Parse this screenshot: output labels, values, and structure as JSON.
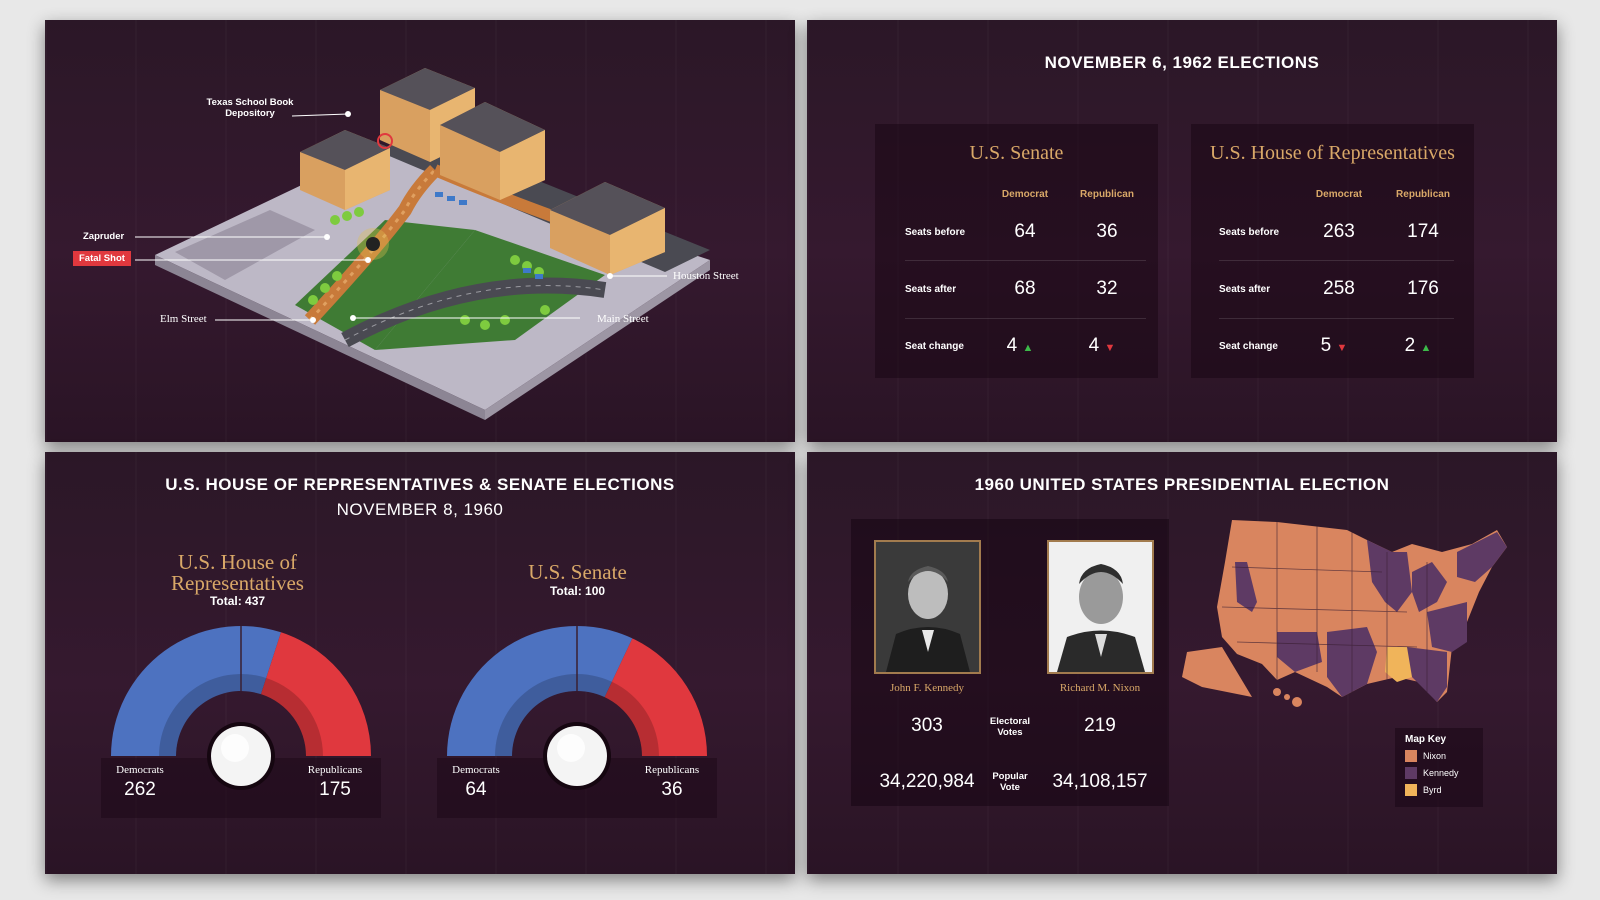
{
  "panel_assassination": {
    "labels": {
      "depository": "Texas School Book Depository",
      "zapruder": "Zapruder",
      "fatal_shot": "Fatal Shot",
      "elm_street": "Elm Street",
      "houston_street": "Houston Street",
      "main_street": "Main Street"
    }
  },
  "panel_1962": {
    "title": "NOVEMBER 6, 1962 ELECTIONS",
    "senate": {
      "heading": "U.S. Senate",
      "col_dem": "Democrat",
      "col_rep": "Republican",
      "rows": [
        {
          "label": "Seats before",
          "dem": "64",
          "rep": "36"
        },
        {
          "label": "Seats after",
          "dem": "68",
          "rep": "32"
        },
        {
          "label": "Seat change",
          "dem": "4",
          "rep": "4",
          "dem_dir": "up",
          "rep_dir": "down"
        }
      ]
    },
    "house": {
      "heading": "U.S. House of Representatives",
      "col_dem": "Democrat",
      "col_rep": "Republican",
      "rows": [
        {
          "label": "Seats before",
          "dem": "263",
          "rep": "174"
        },
        {
          "label": "Seats after",
          "dem": "258",
          "rep": "176"
        },
        {
          "label": "Seat change",
          "dem": "5",
          "rep": "2",
          "dem_dir": "down",
          "rep_dir": "up"
        }
      ]
    }
  },
  "panel_1960_congress": {
    "title": "U.S. HOUSE OF REPRESENTATIVES & SENATE ELECTIONS",
    "subtitle": "NOVEMBER 8, 1960",
    "house": {
      "heading_line1": "U.S. House of",
      "heading_line2": "Representatives",
      "total": "Total: 437",
      "dem_label": "Democrats",
      "dem_value": "262",
      "rep_label": "Republicans",
      "rep_value": "175"
    },
    "senate": {
      "heading": "U.S. Senate",
      "total": "Total: 100",
      "dem_label": "Democrats",
      "dem_value": "64",
      "rep_label": "Republicans",
      "rep_value": "36"
    }
  },
  "panel_1960_presidential": {
    "title": "1960 UNITED STATES PRESIDENTIAL ELECTION",
    "kennedy": {
      "name": "John F. Kennedy",
      "electoral": "303",
      "popular": "34,220,984"
    },
    "nixon": {
      "name": "Richard M. Nixon",
      "electoral": "219",
      "popular": "34,108,157"
    },
    "electoral_label_1": "Electoral",
    "electoral_label_2": "Votes",
    "popular_label_1": "Popular",
    "popular_label_2": "Vote",
    "map_key": {
      "title": "Map Key",
      "items": [
        {
          "label": "Nixon",
          "color": "#d9855f"
        },
        {
          "label": "Kennedy",
          "color": "#5e3a64"
        },
        {
          "label": "Byrd",
          "color": "#f0b45a"
        }
      ]
    }
  },
  "colors": {
    "democrat": "#4d72c0",
    "republican": "#e0383e",
    "gold": "#d9a868",
    "background": "#2e1629"
  }
}
